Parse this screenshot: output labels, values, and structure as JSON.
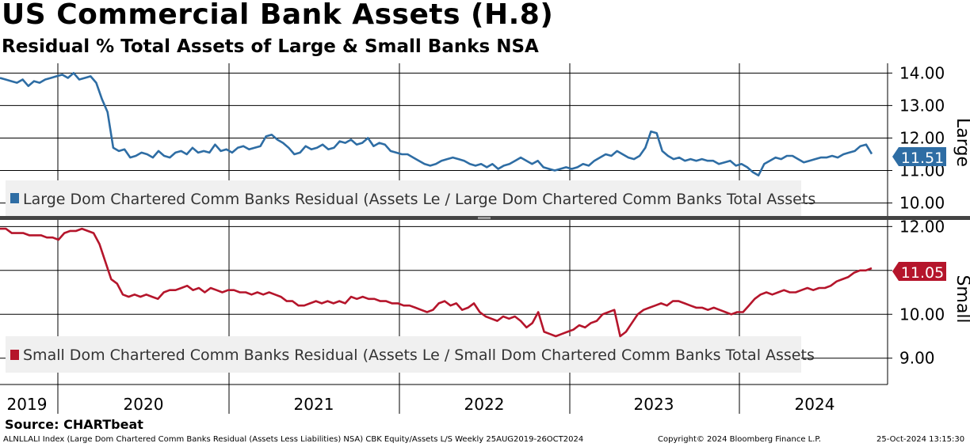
{
  "header": {
    "title": "US Commercial Bank Assets (H.8)",
    "subtitle": "Residual % Total Assets of Large & Small Banks NSA"
  },
  "source": "Source: CHARTbeat",
  "footer": {
    "description": "ALNLLALI Index (Large Dom Chartered Comm Banks Residual (Assets Less Liabilities) NSA) CBK Equity/Assets L/S  Weekly 25AUG2019-26OCT2024",
    "copyright": "Copyright© 2024 Bloomberg Finance L.P.",
    "timestamp": "25-Oct-2024 13:15:30"
  },
  "colors": {
    "large": "#2e6da4",
    "small": "#b5152b",
    "grid": "#000000",
    "legend_bg": "#f0f0f0"
  },
  "chart_data": [
    {
      "type": "line",
      "panel": "top",
      "axis_title": "Large",
      "ylim": [
        9.6,
        14.3
      ],
      "yticks": [
        "14.00",
        "13.00",
        "12.00",
        "11.00",
        "10.00"
      ],
      "ytick_values": [
        14,
        13,
        12,
        11,
        10
      ],
      "last_value_label": "11.51",
      "last_value": 11.51,
      "series": [
        {
          "name": "Large Dom Chartered Comm Banks Residual (Assets Le / Large Dom Chartered Comm Banks Total Assets",
          "x_start": "2019-08-25",
          "x_end": "2024-10-26",
          "values": [
            13.85,
            13.8,
            13.75,
            13.7,
            13.8,
            13.6,
            13.75,
            13.7,
            13.8,
            13.85,
            13.9,
            13.95,
            13.85,
            14.0,
            13.8,
            13.85,
            13.9,
            13.7,
            13.2,
            12.8,
            11.7,
            11.6,
            11.65,
            11.4,
            11.45,
            11.55,
            11.5,
            11.4,
            11.6,
            11.45,
            11.4,
            11.55,
            11.6,
            11.5,
            11.7,
            11.55,
            11.6,
            11.55,
            11.8,
            11.6,
            11.65,
            11.55,
            11.7,
            11.75,
            11.65,
            11.7,
            11.75,
            12.05,
            12.1,
            11.95,
            11.85,
            11.7,
            11.5,
            11.55,
            11.75,
            11.65,
            11.7,
            11.8,
            11.65,
            11.7,
            11.9,
            11.85,
            11.95,
            11.8,
            11.85,
            12.0,
            11.75,
            11.85,
            11.8,
            11.6,
            11.55,
            11.5,
            11.5,
            11.4,
            11.3,
            11.2,
            11.15,
            11.2,
            11.3,
            11.35,
            11.4,
            11.35,
            11.3,
            11.2,
            11.15,
            11.2,
            11.1,
            11.2,
            11.05,
            11.15,
            11.2,
            11.3,
            11.4,
            11.3,
            11.2,
            11.3,
            11.1,
            11.05,
            11.0,
            11.05,
            11.1,
            11.05,
            11.1,
            11.2,
            11.15,
            11.3,
            11.4,
            11.5,
            11.45,
            11.6,
            11.5,
            11.4,
            11.35,
            11.45,
            11.7,
            12.2,
            12.15,
            11.6,
            11.45,
            11.35,
            11.4,
            11.3,
            11.35,
            11.3,
            11.35,
            11.3,
            11.3,
            11.2,
            11.25,
            11.3,
            11.15,
            11.2,
            11.1,
            10.95,
            10.85,
            11.2,
            11.3,
            11.4,
            11.35,
            11.45,
            11.45,
            11.35,
            11.25,
            11.3,
            11.35,
            11.4,
            11.4,
            11.45,
            11.4,
            11.5,
            11.55,
            11.6,
            11.75,
            11.8,
            11.51
          ]
        }
      ]
    },
    {
      "type": "line",
      "panel": "bottom",
      "axis_title": "Small",
      "ylim": [
        8.4,
        12.15
      ],
      "yticks": [
        "12.00",
        "11.00",
        "10.00",
        "9.00"
      ],
      "ytick_values": [
        12,
        11,
        10,
        9
      ],
      "last_value_label": "11.05",
      "last_value": 11.05,
      "series": [
        {
          "name": "Small Dom Chartered Comm Banks Residual (Assets Le / Small Dom Chartered Comm Banks Total Assets",
          "x_start": "2019-08-25",
          "x_end": "2024-10-26",
          "values": [
            11.95,
            11.95,
            11.85,
            11.85,
            11.85,
            11.8,
            11.8,
            11.8,
            11.75,
            11.75,
            11.7,
            11.85,
            11.9,
            11.9,
            11.95,
            11.9,
            11.85,
            11.6,
            11.2,
            10.8,
            10.7,
            10.45,
            10.4,
            10.45,
            10.4,
            10.45,
            10.4,
            10.35,
            10.5,
            10.55,
            10.55,
            10.6,
            10.65,
            10.55,
            10.6,
            10.5,
            10.6,
            10.55,
            10.5,
            10.55,
            10.55,
            10.5,
            10.5,
            10.45,
            10.5,
            10.45,
            10.5,
            10.45,
            10.4,
            10.3,
            10.3,
            10.2,
            10.2,
            10.25,
            10.3,
            10.25,
            10.3,
            10.25,
            10.3,
            10.25,
            10.4,
            10.35,
            10.4,
            10.35,
            10.35,
            10.3,
            10.3,
            10.25,
            10.25,
            10.2,
            10.2,
            10.15,
            10.1,
            10.05,
            10.1,
            10.25,
            10.3,
            10.2,
            10.25,
            10.1,
            10.15,
            10.25,
            10.05,
            9.95,
            9.9,
            9.85,
            9.95,
            9.9,
            9.95,
            9.85,
            9.7,
            9.8,
            10.05,
            9.6,
            9.55,
            9.5,
            9.55,
            9.6,
            9.65,
            9.75,
            9.7,
            9.8,
            9.85,
            10.0,
            10.05,
            10.1,
            9.5,
            9.6,
            9.8,
            10.0,
            10.1,
            10.15,
            10.2,
            10.25,
            10.2,
            10.3,
            10.3,
            10.25,
            10.2,
            10.15,
            10.15,
            10.1,
            10.15,
            10.1,
            10.05,
            10.0,
            10.05,
            10.05,
            10.2,
            10.35,
            10.45,
            10.5,
            10.45,
            10.5,
            10.55,
            10.5,
            10.5,
            10.55,
            10.6,
            10.55,
            10.6,
            10.6,
            10.65,
            10.75,
            10.8,
            10.85,
            10.95,
            11.0,
            11.0,
            11.05
          ]
        }
      ]
    }
  ],
  "x_axis": {
    "labels": [
      "2019",
      "2020",
      "2021",
      "2022",
      "2023",
      "2024"
    ]
  }
}
